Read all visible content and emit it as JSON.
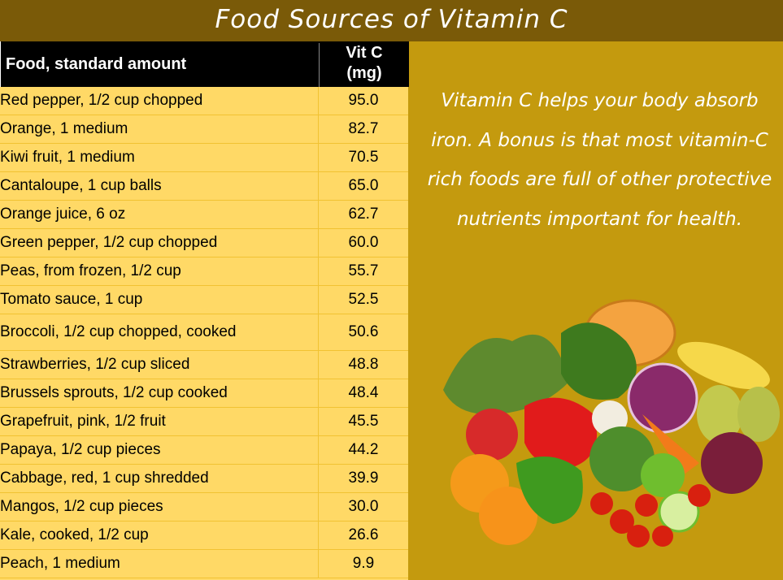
{
  "title": "Food Sources of Vitamin C",
  "table": {
    "headers": [
      "Food, standard amount",
      "Vit C\n(mg)"
    ],
    "rows": [
      {
        "food": "Red pepper, 1/2 cup chopped",
        "value": "95.0"
      },
      {
        "food": "Orange, 1 medium",
        "value": "82.7"
      },
      {
        "food": "Kiwi fruit, 1 medium",
        "value": "70.5"
      },
      {
        "food": "Cantaloupe, 1 cup balls",
        "value": "65.0"
      },
      {
        "food": "Orange juice, 6 oz",
        "value": "62.7"
      },
      {
        "food": "Green pepper, 1/2 cup chopped",
        "value": "60.0"
      },
      {
        "food": "Peas, from frozen, 1/2 cup",
        "value": "55.7"
      },
      {
        "food": "Tomato sauce, 1 cup",
        "value": "52.5"
      },
      {
        "food": "Broccoli, 1/2 cup chopped, cooked",
        "value": "50.6"
      },
      {
        "food": "Strawberries, 1/2 cup sliced",
        "value": "48.8"
      },
      {
        "food": "Brussels sprouts, 1/2 cup cooked",
        "value": "48.4"
      },
      {
        "food": "Grapefruit, pink, 1/2 fruit",
        "value": "45.5"
      },
      {
        "food": "Papaya, 1/2 cup pieces",
        "value": "44.2"
      },
      {
        "food": "Cabbage, red, 1 cup shredded",
        "value": "39.9"
      },
      {
        "food": "Mangos, 1/2 cup pieces",
        "value": "30.0"
      },
      {
        "food": "Kale, cooked, 1/2 cup",
        "value": "26.6"
      },
      {
        "food": "Peach, 1 medium",
        "value": "9.9"
      }
    ]
  },
  "note": "Vitamin C helps your body absorb iron. A bonus is that most vitamin-C rich foods are full of other protective nutrients important for health.",
  "colors": {
    "title_bar": "#7A5A08",
    "background": "#C49A0E",
    "table_body": "#FFD966",
    "header": "#000000"
  }
}
